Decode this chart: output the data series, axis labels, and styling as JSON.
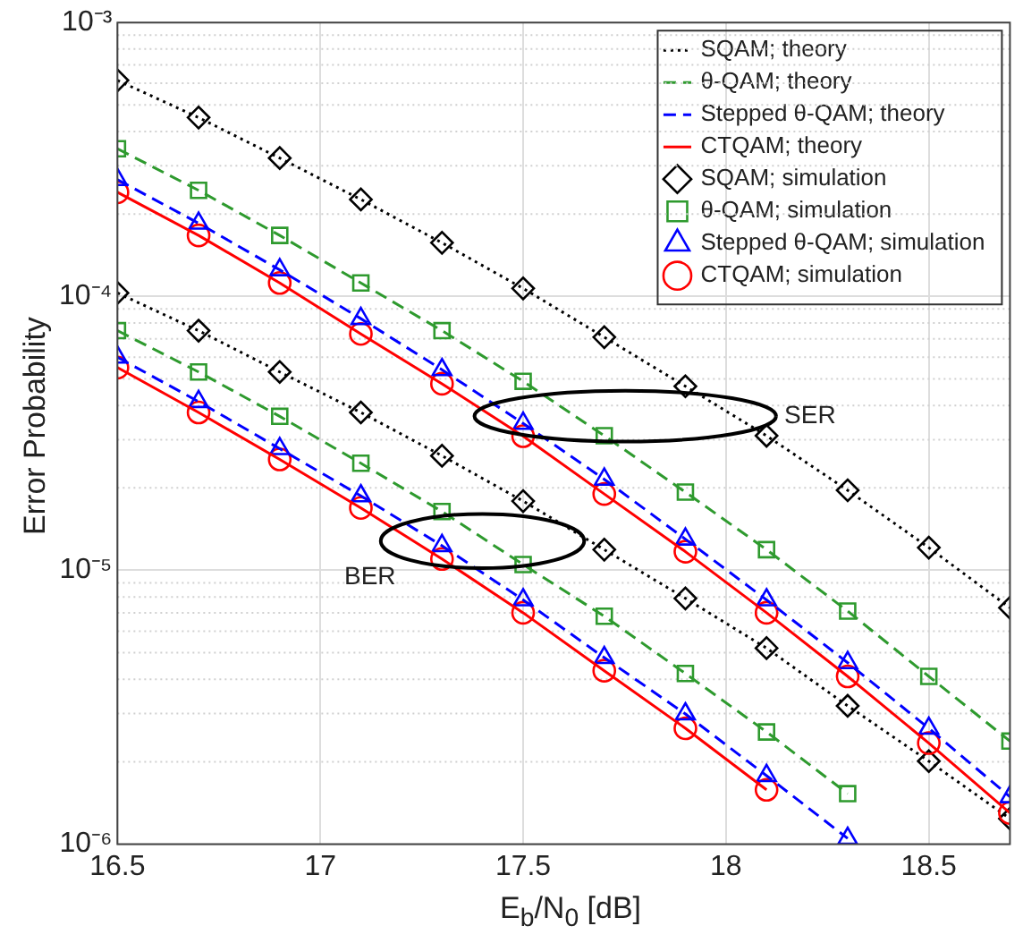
{
  "chart_data": {
    "type": "line",
    "xlabel": "E$_{b}$/N$_{0}$ [dB]",
    "ylabel": "Error Probability",
    "x": [
      16.5,
      16.7,
      16.9,
      17.1,
      17.3,
      17.5,
      17.7,
      17.9,
      18.1,
      18.3,
      18.5,
      18.7
    ],
    "xlim": [
      16.5,
      18.7
    ],
    "xticks": [
      16.5,
      17,
      17.5,
      18,
      18.5
    ],
    "log": "y",
    "ylim": [
      1e-06,
      0.001
    ],
    "yticks": [
      {
        "value": 1e-06,
        "label": "10⁻⁶"
      },
      {
        "value": 1e-05,
        "label": "10⁻⁵"
      },
      {
        "value": 0.0001,
        "label": "10⁻⁴"
      },
      {
        "value": 0.001,
        "label": "10⁻³"
      }
    ],
    "grid": true,
    "legend": "top right",
    "series": [
      {
        "name": "SQAM; theory",
        "marker": "none",
        "line_style": "dotted",
        "color": "#000000",
        "values": [
          0.000615,
          0.00045,
          0.00032,
          0.000226,
          0.000157,
          0.000107,
          7.1e-05,
          4.7e-05,
          3.1e-05,
          1.96e-05,
          1.21e-05,
          7.3e-06
        ]
      },
      {
        "name": "θ-QAM; theory",
        "marker": "none",
        "line_style": "dashed",
        "color": "#2e9a2e",
        "values": [
          0.000346,
          0.000244,
          0.000167,
          0.000112,
          7.5e-05,
          4.9e-05,
          3.1e-05,
          1.93e-05,
          1.19e-05,
          7.1e-06,
          4.1e-06,
          2.38e-06
        ]
      },
      {
        "name": "Stepped θ-QAM; theory",
        "marker": "none",
        "line_style": "dashed",
        "color": "#0000ff",
        "values": [
          0.000267,
          0.000185,
          0.000125,
          8.3e-05,
          5.4e-05,
          3.44e-05,
          2.15e-05,
          1.3e-05,
          7.8e-06,
          4.6e-06,
          2.65e-06,
          1.49e-06
        ]
      },
      {
        "name": "CTQAM; theory",
        "marker": "none",
        "line_style": "solid",
        "color": "#ff0000",
        "values": [
          0.00024,
          0.000167,
          0.000112,
          7.3e-05,
          4.8e-05,
          3.09e-05,
          1.9e-05,
          1.17e-05,
          7e-06,
          4.1e-06,
          2.34e-06,
          1.3e-06
        ]
      },
      {
        "name": "SQAM; simulation",
        "type": "scatter",
        "marker": "diamond",
        "color": "#000000",
        "values": [
          0.000615,
          0.00045,
          0.00032,
          0.000226,
          0.000157,
          0.000107,
          7.1e-05,
          4.7e-05,
          3.1e-05,
          1.96e-05,
          1.21e-05,
          7.3e-06
        ]
      },
      {
        "name": "θ-QAM; simulation",
        "type": "scatter",
        "marker": "square",
        "color": "#2e9a2e",
        "values": [
          0.000346,
          0.000244,
          0.000167,
          0.000112,
          7.5e-05,
          4.9e-05,
          3.1e-05,
          1.93e-05,
          1.19e-05,
          7.1e-06,
          4.1e-06,
          2.38e-06
        ]
      },
      {
        "name": "Stepped θ-QAM; simulation",
        "type": "scatter",
        "marker": "triangle",
        "color": "#0000ff",
        "values": [
          0.000267,
          0.000185,
          0.000125,
          8.3e-05,
          5.4e-05,
          3.44e-05,
          2.15e-05,
          1.3e-05,
          7.8e-06,
          4.6e-06,
          2.65e-06,
          1.49e-06
        ]
      },
      {
        "name": "CTQAM; simulation",
        "type": "scatter",
        "marker": "circle",
        "color": "#ff0000",
        "values": [
          0.00024,
          0.000167,
          0.000112,
          7.3e-05,
          4.8e-05,
          3.09e-05,
          1.9e-05,
          1.17e-05,
          7e-06,
          4.1e-06,
          2.34e-06,
          1.3e-06
        ]
      },
      {
        "marker": "none",
        "line_style": "dotted",
        "color": "#000000",
        "values": [
          0.000103,
          7.5e-05,
          5.3e-05,
          3.77e-05,
          2.62e-05,
          1.79e-05,
          1.19e-05,
          7.9e-06,
          5.2e-06,
          3.2e-06,
          2.01e-06,
          1.24e-06
        ]
      },
      {
        "marker": "none",
        "line_style": "dashed",
        "color": "#2e9a2e",
        "values": [
          7.5e-05,
          5.3e-05,
          3.65e-05,
          2.46e-05,
          1.64e-05,
          1.05e-05,
          6.8e-06,
          4.2e-06,
          2.57e-06,
          1.53e-06,
          null,
          null
        ]
      },
      {
        "marker": "none",
        "line_style": "dashed",
        "color": "#0000ff",
        "values": [
          6e-05,
          4.13e-05,
          2.78e-05,
          1.87e-05,
          1.23e-05,
          7.8e-06,
          4.8e-06,
          2.99e-06,
          1.78e-06,
          1.05e-06,
          null,
          null
        ]
      },
      {
        "marker": "none",
        "line_style": "solid",
        "color": "#ff0000",
        "values": [
          5.5e-05,
          3.77e-05,
          2.54e-05,
          1.69e-05,
          1.1e-05,
          7e-06,
          4.3e-06,
          2.65e-06,
          1.58e-06,
          null,
          null,
          null
        ]
      },
      {
        "type": "scatter",
        "marker": "diamond",
        "color": "#000000",
        "values": [
          0.000103,
          7.5e-05,
          5.3e-05,
          3.77e-05,
          2.62e-05,
          1.79e-05,
          1.19e-05,
          7.9e-06,
          5.2e-06,
          3.2e-06,
          2.01e-06,
          1.24e-06
        ]
      },
      {
        "type": "scatter",
        "marker": "square",
        "color": "#2e9a2e",
        "values": [
          7.5e-05,
          5.3e-05,
          3.65e-05,
          2.46e-05,
          1.64e-05,
          1.05e-05,
          6.8e-06,
          4.2e-06,
          2.57e-06,
          1.53e-06,
          null,
          null
        ]
      },
      {
        "type": "scatter",
        "marker": "triangle",
        "color": "#0000ff",
        "values": [
          6e-05,
          4.13e-05,
          2.78e-05,
          1.87e-05,
          1.23e-05,
          7.8e-06,
          4.8e-06,
          2.99e-06,
          1.78e-06,
          1.05e-06,
          null,
          null
        ]
      },
      {
        "type": "scatter",
        "marker": "circle",
        "color": "#ff0000",
        "values": [
          5.5e-05,
          3.77e-05,
          2.54e-05,
          1.69e-05,
          1.1e-05,
          7e-06,
          4.3e-06,
          2.65e-06,
          1.58e-06,
          null,
          null,
          null
        ]
      }
    ],
    "annotations": [
      "SER",
      "BER"
    ]
  }
}
